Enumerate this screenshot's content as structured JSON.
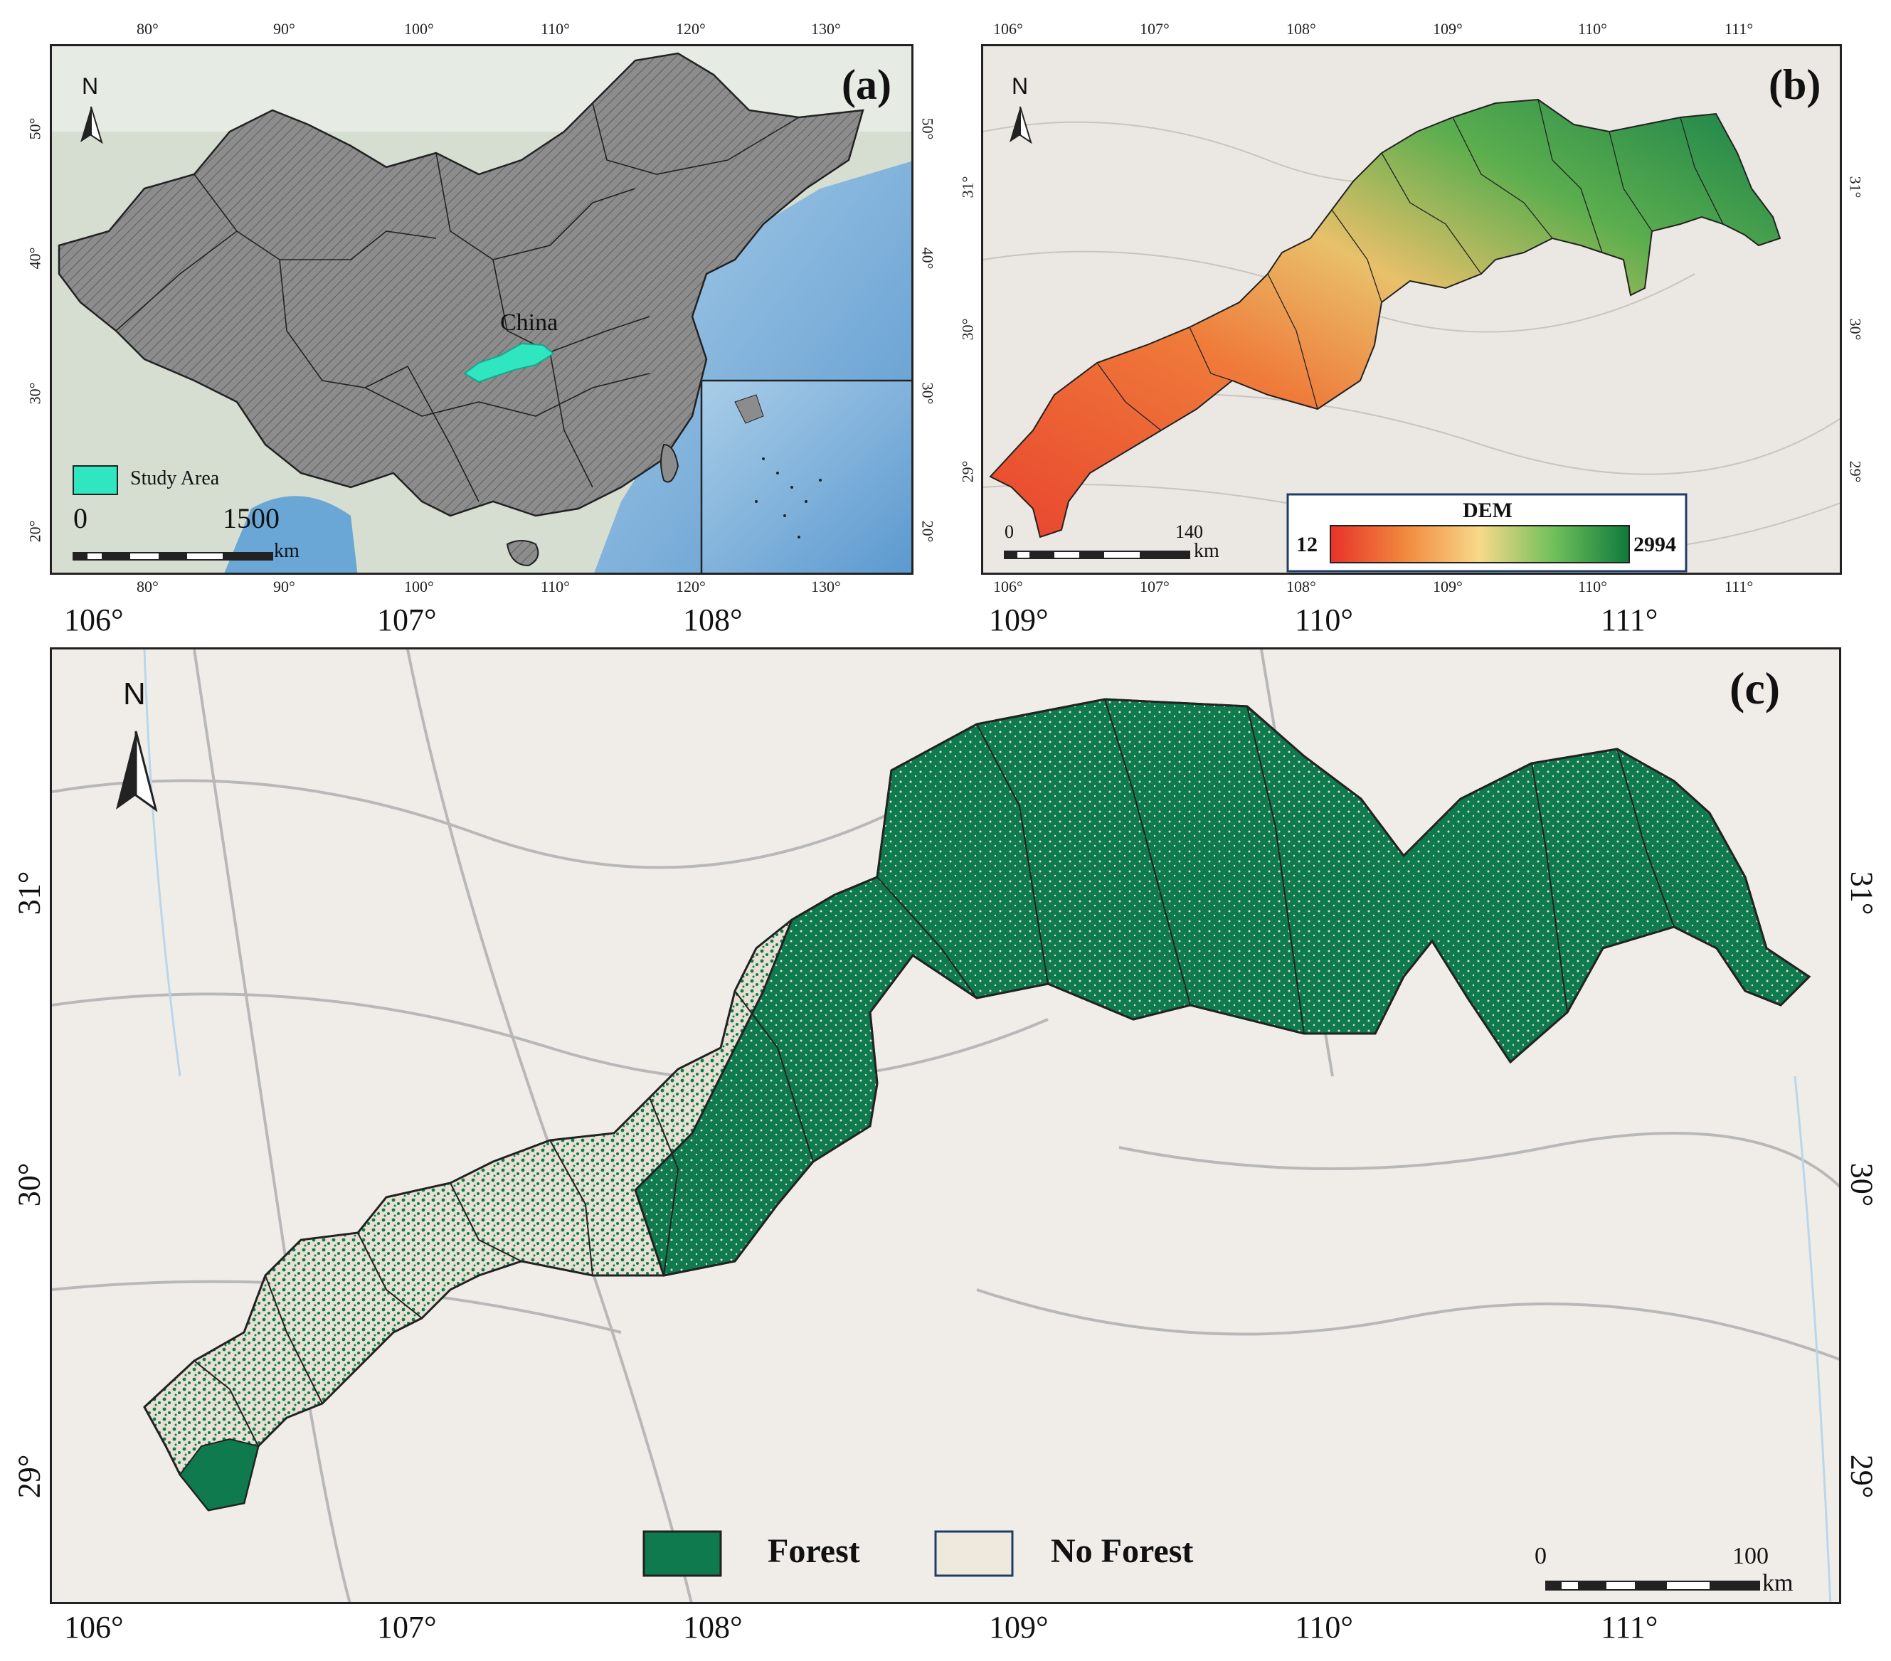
{
  "panel_a": {
    "label": "(a)",
    "country_label": "China",
    "legend_label": "Study Area",
    "scale_start": "0",
    "scale_end": "1500",
    "scale_unit": "km",
    "north": "N",
    "lon_ticks": [
      "80°",
      "90°",
      "100°",
      "110°",
      "120°",
      "130°"
    ],
    "lat_ticks": [
      "50°",
      "40°",
      "30°",
      "20°"
    ],
    "colors": {
      "land": "#8e8e8e",
      "sea": "#7fb3dc",
      "study": "#2fe6c0",
      "outside": "#d9e2d4"
    }
  },
  "panel_b": {
    "label": "(b)",
    "north": "N",
    "scale_start": "0",
    "scale_end": "140",
    "scale_unit": "km",
    "legend_title": "DEM",
    "legend_min": "12",
    "legend_max": "2994",
    "lon_ticks": [
      "106°",
      "107°",
      "108°",
      "109°",
      "110°",
      "111°"
    ],
    "lat_ticks": [
      "31°",
      "30°",
      "29°"
    ],
    "colors": {
      "low": "#e8322a",
      "mid": "#f7d98a",
      "high": "#0f7a3c"
    }
  },
  "panel_c": {
    "label": "(c)",
    "north": "N",
    "scale_start": "0",
    "scale_end": "100",
    "scale_unit": "km",
    "legend_forest": "Forest",
    "legend_no_forest": "No Forest",
    "lon_ticks": [
      "106°",
      "107°",
      "108°",
      "109°",
      "110°",
      "111°"
    ],
    "lat_ticks": [
      "31°",
      "30°",
      "29°"
    ],
    "colors": {
      "forest": "#0e7a4e",
      "no_forest": "#efe8dc"
    }
  }
}
